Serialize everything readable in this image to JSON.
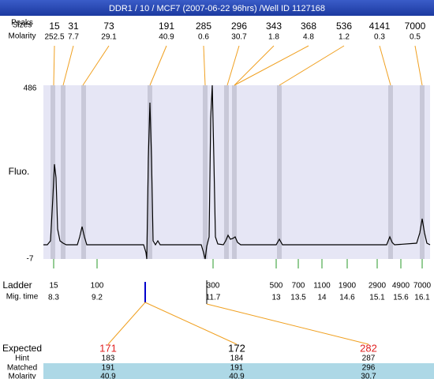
{
  "title": "DDR1 / 10 / MCF7 (2007-06-22 96hrs) /Well ID 1127168",
  "peaks": {
    "row_labels": [
      "Peaks",
      "Sizes",
      "Molarity"
    ],
    "sizes": [
      "15",
      "31",
      "73",
      "191",
      "285",
      "296",
      "343",
      "368",
      "536",
      "4141",
      "7000"
    ],
    "molarity": [
      "252.5",
      "7.7",
      "29.1",
      "40.9",
      "0.6",
      "30.7",
      "1.8",
      "4.8",
      "1.2",
      "0.3",
      "0.5"
    ]
  },
  "plot": {
    "y_label": "Fluo.",
    "y_top": "486",
    "y_bottom": "-7"
  },
  "ladder": {
    "row_labels": [
      "Ladder",
      "Mig. time"
    ],
    "sizes": [
      "15",
      "100",
      "300",
      "500",
      "700",
      "1100",
      "1900",
      "2900",
      "4900",
      "7000"
    ],
    "times": [
      "8.3",
      "9.2",
      "11.7",
      "13",
      "13.5",
      "14",
      "14.6",
      "15.1",
      "15.6",
      "16.1"
    ]
  },
  "table": {
    "row_labels": [
      "Expected",
      "Hint",
      "Matched",
      "Molarity"
    ],
    "expected": [
      "171",
      "172",
      "282"
    ],
    "hint": [
      "183",
      "184",
      "287"
    ],
    "matched": [
      "191",
      "191",
      "296"
    ],
    "molarity": [
      "40.9",
      "40.9",
      "30.7"
    ]
  }
}
